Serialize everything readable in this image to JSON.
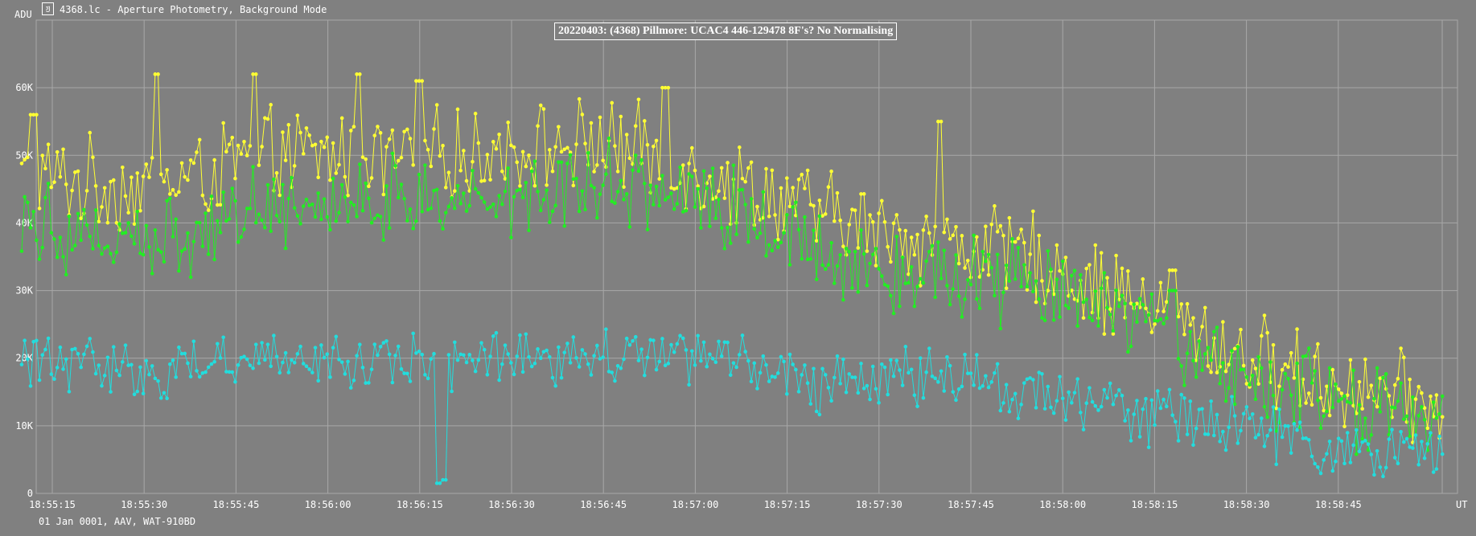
{
  "window": {
    "title": "4368.lc - Aperture Photometry, Background Mode",
    "icon": "app-icon"
  },
  "footer": "01 Jan 0001, AAV, WAT-910BD",
  "chart_data": {
    "type": "line",
    "title": "20220403: (4368) Pillmore: UCAC4 446-129478 8F's? No Normalising",
    "ylabel": "ADU",
    "xlabel": "UT",
    "ylim": [
      0,
      70000
    ],
    "xlim_seconds": [
      0,
      227
    ],
    "ytick_labels": [
      "0",
      "10K",
      "20K",
      "30K",
      "40K",
      "50K",
      "60K"
    ],
    "ytick_values": [
      0,
      10000,
      20000,
      30000,
      40000,
      50000,
      60000
    ],
    "xtick_labels": [
      "18:55:15",
      "18:55:30",
      "18:55:45",
      "18:56:00",
      "18:56:15",
      "18:56:30",
      "18:56:45",
      "18:57:00",
      "18:57:15",
      "18:57:30",
      "18:57:45",
      "18:58:00",
      "18:58:15",
      "18:58:30",
      "18:58:45"
    ],
    "grid": true,
    "colors": {
      "background": "#808080",
      "grid": "#a8a8a8",
      "text": "#ffffff"
    },
    "series": [
      {
        "color": "#ffff33",
        "x_range": [
          "18:55:10",
          "18:59:02"
        ],
        "trend": [
          [
            0,
            47000
          ],
          [
            20,
            45000
          ],
          [
            40,
            50000
          ],
          [
            70,
            50000
          ],
          [
            95,
            52000
          ],
          [
            110,
            48000
          ],
          [
            135,
            40000
          ],
          [
            145,
            38000
          ],
          [
            165,
            35000
          ],
          [
            180,
            29000
          ],
          [
            200,
            20000
          ],
          [
            215,
            16000
          ],
          [
            230,
            13000
          ]
        ],
        "peaks": [
          [
            2,
            56000
          ],
          [
            22,
            62000
          ],
          [
            38,
            62000
          ],
          [
            55,
            62000
          ],
          [
            65,
            61000
          ],
          [
            105,
            60000
          ],
          [
            150,
            55000
          ],
          [
            188,
            33000
          ]
        ]
      },
      {
        "color": "#22ee22",
        "x_range": [
          "18:55:10",
          "18:59:02"
        ],
        "trend": [
          [
            0,
            42000
          ],
          [
            20,
            36000
          ],
          [
            40,
            43000
          ],
          [
            70,
            43000
          ],
          [
            95,
            47000
          ],
          [
            110,
            44000
          ],
          [
            135,
            35000
          ],
          [
            145,
            33000
          ],
          [
            165,
            31000
          ],
          [
            180,
            25000
          ],
          [
            200,
            17000
          ],
          [
            215,
            13000
          ],
          [
            230,
            11000
          ]
        ],
        "peaks": [
          [
            188,
            30000
          ]
        ]
      },
      {
        "color": "#22dddd",
        "x_range": [
          "18:55:10",
          "18:59:02"
        ],
        "trend": [
          [
            0,
            20000
          ],
          [
            20,
            18000
          ],
          [
            35,
            20000
          ],
          [
            60,
            20000
          ],
          [
            80,
            19000
          ],
          [
            105,
            21000
          ],
          [
            115,
            20000
          ],
          [
            130,
            16000
          ],
          [
            150,
            18000
          ],
          [
            165,
            15000
          ],
          [
            180,
            12000
          ],
          [
            200,
            10000
          ],
          [
            215,
            6000
          ],
          [
            230,
            5000
          ]
        ],
        "dips": [
          [
            68,
            1500
          ],
          [
            69,
            2000
          ]
        ]
      }
    ]
  }
}
